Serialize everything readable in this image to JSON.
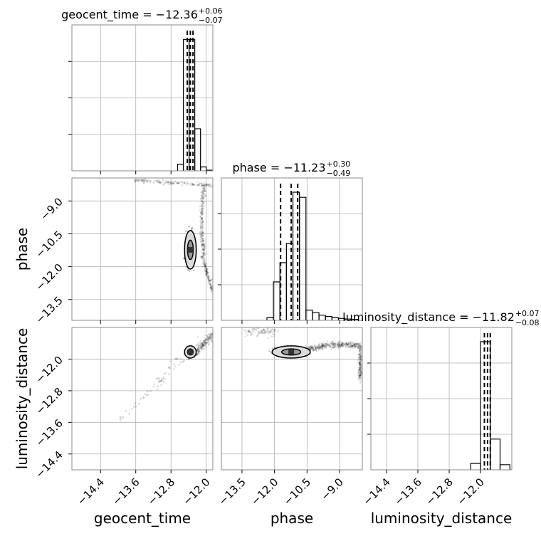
{
  "chart_data": {
    "type": "corner",
    "params": [
      "geocent_time",
      "phase",
      "luminosity_distance"
    ],
    "axis_labels": [
      "geocent_time",
      "phase",
      "luminosity_distance"
    ],
    "ranges": {
      "geocent_time": [
        -15.05,
        -11.85
      ],
      "phase": [
        -14.45,
        -7.95
      ],
      "luminosity_distance": [
        -14.8,
        -11.2
      ]
    },
    "ticks": {
      "geocent_time": [
        -14.4,
        -13.6,
        -12.8,
        -12.0
      ],
      "phase": [
        -13.5,
        -12.0,
        -10.5,
        -9.0
      ],
      "luminosity_distance": [
        -14.4,
        -13.6,
        -12.8,
        -12.0
      ]
    },
    "tick_labels": {
      "geocent_time": [
        "−14.4",
        "−13.6",
        "−12.8",
        "−12.0"
      ],
      "phase": [
        "−13.5",
        "−12.0",
        "−10.5",
        "−9.0"
      ],
      "luminosity_distance": [
        "−14.4",
        "−13.6",
        "−12.8",
        "−12.0"
      ]
    },
    "titles": [
      {
        "param": "geocent_time",
        "text": "geocent_time = −12.36",
        "sup": "+0.06",
        "sub": "−0.07"
      },
      {
        "param": "phase",
        "text": "phase = −11.23",
        "sup": "+0.30",
        "sub": "−0.49"
      },
      {
        "param": "luminosity_distance",
        "text": "luminosity_distance = −11.82",
        "sup": "+0.07",
        "sub": "−0.08"
      }
    ],
    "quantiles": {
      "geocent_time": [
        -12.43,
        -12.36,
        -12.3
      ],
      "phase": [
        -11.72,
        -11.23,
        -10.93
      ],
      "luminosity_distance": [
        -11.9,
        -11.82,
        -11.75
      ]
    },
    "histograms": {
      "geocent_time": {
        "edges": [
          -12.65,
          -12.52,
          -12.39,
          -12.26,
          -12.13,
          -12.0,
          -11.87
        ],
        "counts": [
          0.05,
          1.0,
          1.0,
          0.32,
          0.03,
          0.005
        ]
      },
      "phase": {
        "edges": [
          -12.35,
          -12.05,
          -11.75,
          -11.45,
          -11.15,
          -10.85,
          -10.55,
          -10.25,
          -9.95,
          -9.65,
          -9.35,
          -9.05,
          -8.75,
          -8.45,
          -8.15
        ],
        "counts": [
          0.02,
          0.3,
          0.45,
          0.6,
          1.0,
          0.96,
          0.08,
          0.06,
          0.04,
          0.03,
          0.02,
          0.015,
          0.01,
          0.008
        ]
      },
      "luminosity_distance": {
        "edges": [
          -12.25,
          -12.0,
          -11.75,
          -11.5,
          -11.25
        ],
        "counts": [
          0.05,
          1.0,
          0.24,
          0.04
        ]
      }
    },
    "grid": true,
    "grid_color": "#b0b0b0",
    "line_color": "#000000",
    "sample_color": "#000000"
  }
}
